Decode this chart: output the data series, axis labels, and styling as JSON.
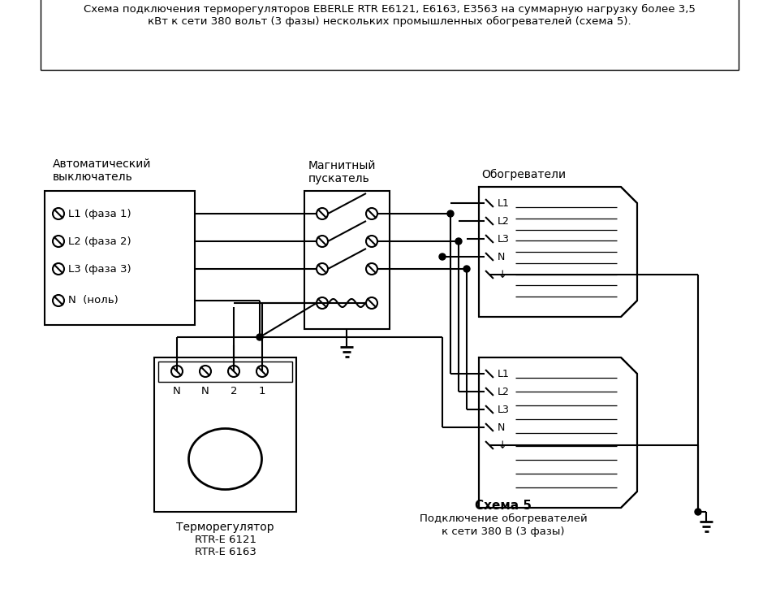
{
  "title_line1": "Схема подключения терморегуляторов EBERLE RTR E6121, E6163, E3563 на суммарную нагрузку более 3,5",
  "title_line2": "кВт к сети 380 вольт (3 фазы) нескольких промышленных обогревателей (схема 5).",
  "bg_color": "#ffffff",
  "label_avtomat": "Автоматический\nвыключатель",
  "label_magnet": "Магнитный\nпускатель",
  "label_obogrev": "Обогреватели",
  "label_termo_line1": "Терморегулятор",
  "label_termo_line2": "RTR-E 6121",
  "label_termo_line3": "RTR-E 6163",
  "label_schema_bold": "Схема 5",
  "label_schema_sub1": "Подключение обогревателей",
  "label_schema_sub2": "к сети 380 В (3 фазы)",
  "avtomat_lines": [
    "L1 (фаза 1)",
    "L2 (фаза 2)",
    "L3 (фаза 3)",
    "N  (ноль)"
  ],
  "termo_terminals": [
    "N",
    "N",
    "2",
    "1"
  ],
  "heater_lines": [
    "L1",
    "L2",
    "L3",
    "N",
    "↓"
  ]
}
